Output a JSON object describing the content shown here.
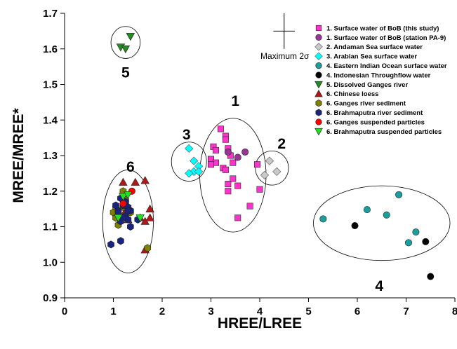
{
  "chart_data": {
    "type": "scatter",
    "xlabel": "HREE/LREE",
    "ylabel": "MREE/MREE*",
    "xlim": [
      0,
      8
    ],
    "ylim": [
      0.9,
      1.7
    ],
    "xticks": [
      "0",
      "1",
      "2",
      "3",
      "4",
      "5",
      "6",
      "7",
      "8"
    ],
    "yticks": [
      "0.9",
      "1.0",
      "1.1",
      "1.2",
      "1.3",
      "1.4",
      "1.5",
      "1.6",
      "1.7"
    ],
    "grid": false,
    "legend_position": "top-right",
    "error_bar_label": "Maximum 2σ",
    "series": [
      {
        "name": "1. Surface water of BoB (this study)",
        "marker": "square",
        "color": "#ff33cc",
        "points": [
          [
            3.2,
            1.375
          ],
          [
            3.3,
            1.355
          ],
          [
            3.05,
            1.325
          ],
          [
            3.1,
            1.315
          ],
          [
            3.0,
            1.29
          ],
          [
            3.1,
            1.28
          ],
          [
            3.0,
            1.275
          ],
          [
            3.25,
            1.265
          ],
          [
            3.35,
            1.32
          ],
          [
            3.4,
            1.3
          ],
          [
            3.45,
            1.28
          ],
          [
            3.3,
            1.26
          ],
          [
            3.45,
            1.235
          ],
          [
            3.35,
            1.22
          ],
          [
            3.35,
            1.2
          ],
          [
            3.55,
            1.215
          ],
          [
            3.95,
            1.275
          ],
          [
            4.0,
            1.205
          ],
          [
            3.8,
            1.158
          ],
          [
            3.55,
            1.125
          ],
          [
            3.3,
            1.345
          ]
        ]
      },
      {
        "name": "1. Surface water of BoB (station PA-9)",
        "marker": "circle",
        "color": "#993399",
        "points": [
          [
            3.35,
            1.31
          ],
          [
            3.55,
            1.295
          ],
          [
            3.7,
            1.31
          ]
        ]
      },
      {
        "name": "2. Andaman Sea surface water",
        "marker": "diamond",
        "color": "#c8c8c8",
        "points": [
          [
            4.2,
            1.285
          ],
          [
            4.35,
            1.255
          ],
          [
            4.1,
            1.245
          ]
        ]
      },
      {
        "name": "3. Arabian Sea surface water",
        "marker": "diamond",
        "color": "#00ffff",
        "points": [
          [
            2.55,
            1.32
          ],
          [
            2.65,
            1.285
          ],
          [
            2.75,
            1.27
          ],
          [
            2.65,
            1.255
          ],
          [
            2.55,
            1.25
          ],
          [
            2.75,
            1.255
          ]
        ]
      },
      {
        "name": "4. Eastern Indian Ocean surface water",
        "marker": "circle",
        "color": "#1a9e9e",
        "points": [
          [
            5.3,
            1.122
          ],
          [
            6.2,
            1.148
          ],
          [
            6.6,
            1.133
          ],
          [
            6.85,
            1.19
          ],
          [
            7.05,
            1.055
          ],
          [
            7.2,
            1.085
          ]
        ]
      },
      {
        "name": "4. Indonesian Throughflow water",
        "marker": "circle",
        "color": "#000000",
        "points": [
          [
            5.95,
            1.103
          ],
          [
            7.4,
            1.058
          ],
          [
            7.5,
            0.96
          ]
        ]
      },
      {
        "name": "5. Dissolved Ganges river",
        "marker": "triangle-down",
        "color": "#228b22",
        "points": [
          [
            1.15,
            1.605
          ],
          [
            1.25,
            1.6
          ],
          [
            1.35,
            1.635
          ]
        ]
      },
      {
        "name": "6. Chinese loess",
        "marker": "triangle-up",
        "color": "#b01818",
        "points": [
          [
            1.2,
            1.225
          ],
          [
            1.45,
            1.225
          ],
          [
            1.65,
            1.23
          ],
          [
            1.75,
            1.15
          ],
          [
            1.75,
            1.125
          ],
          [
            1.55,
            1.125
          ],
          [
            1.65,
            1.115
          ],
          [
            1.3,
            1.12
          ],
          [
            1.25,
            1.145
          ],
          [
            1.65,
            1.035
          ]
        ]
      },
      {
        "name": "6. Ganges river sediment",
        "marker": "hexagon",
        "color": "#808000",
        "points": [
          [
            1.0,
            1.14
          ],
          [
            1.05,
            1.125
          ],
          [
            1.1,
            1.105
          ],
          [
            1.2,
            1.2
          ],
          [
            1.25,
            1.175
          ],
          [
            1.05,
            1.155
          ],
          [
            1.35,
            1.14
          ],
          [
            1.2,
            1.155
          ],
          [
            1.7,
            1.04
          ]
        ]
      },
      {
        "name": "6. Brahmaputra river sediment",
        "marker": "hexagon",
        "color": "#1a237e",
        "points": [
          [
            0.95,
            1.05
          ],
          [
            1.1,
            1.145
          ],
          [
            1.15,
            1.18
          ],
          [
            1.2,
            1.16
          ],
          [
            1.3,
            1.155
          ],
          [
            1.25,
            1.13
          ],
          [
            1.15,
            1.115
          ],
          [
            1.3,
            1.12
          ],
          [
            1.35,
            1.145
          ],
          [
            1.1,
            1.14
          ],
          [
            1.2,
            1.125
          ],
          [
            1.05,
            1.16
          ],
          [
            1.35,
            1.1
          ],
          [
            1.25,
            1.17
          ],
          [
            1.5,
            1.12
          ],
          [
            1.3,
            1.145
          ],
          [
            1.15,
            1.06
          ]
        ]
      },
      {
        "name": "6. Ganges suspended particles",
        "marker": "circle",
        "color": "#ff0000",
        "points": [
          [
            1.38,
            1.2
          ],
          [
            1.2,
            1.165
          ]
        ]
      },
      {
        "name": "6. Brahmaputra suspended particles",
        "marker": "triangle-down",
        "color": "#22dd22",
        "points": [
          [
            1.2,
            1.185
          ],
          [
            1.55,
            1.125
          ],
          [
            1.3,
            1.19
          ],
          [
            1.1,
            1.125
          ]
        ]
      }
    ],
    "annotations": [
      {
        "text": "1",
        "x": 3.5,
        "y": 1.44
      },
      {
        "text": "2",
        "x": 4.45,
        "y": 1.32
      },
      {
        "text": "3",
        "x": 2.5,
        "y": 1.345
      },
      {
        "text": "4",
        "x": 6.45,
        "y": 0.92
      },
      {
        "text": "5",
        "x": 1.25,
        "y": 1.52
      },
      {
        "text": "6",
        "x": 1.35,
        "y": 1.255
      }
    ],
    "ellipses": [
      {
        "cx": 3.45,
        "cy": 1.245,
        "rx": 0.68,
        "ry": 0.16
      },
      {
        "cx": 4.25,
        "cy": 1.265,
        "rx": 0.34,
        "ry": 0.048
      },
      {
        "cx": 2.55,
        "cy": 1.283,
        "rx": 0.36,
        "ry": 0.055
      },
      {
        "cx": 6.5,
        "cy": 1.11,
        "rx": 1.4,
        "ry": 0.105
      },
      {
        "cx": 1.25,
        "cy": 1.618,
        "rx": 0.3,
        "ry": 0.045
      },
      {
        "cx": 1.3,
        "cy": 1.115,
        "rx": 0.52,
        "ry": 0.145
      }
    ],
    "error_bar": {
      "x": 4.5,
      "y": 1.65,
      "dx": 0.22,
      "dy": 0.05
    }
  }
}
